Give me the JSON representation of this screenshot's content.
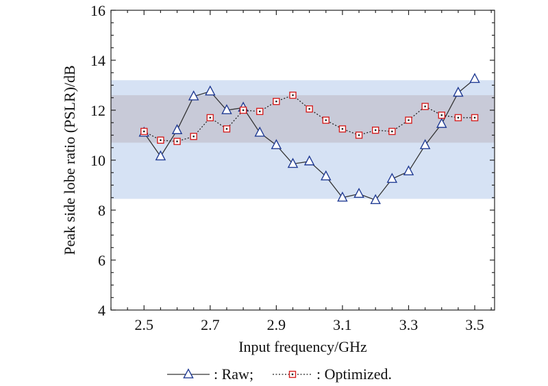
{
  "chart_data": {
    "type": "line",
    "xlabel": "Input frequency/GHz",
    "ylabel": "Peak side lobe ratio (PSLR)/dB",
    "xlim": [
      2.4,
      3.56
    ],
    "ylim": [
      4,
      16
    ],
    "xticks": [
      "2.5",
      "2.7",
      "2.9",
      "3.1",
      "3.3",
      "3.5"
    ],
    "yticks": [
      "4",
      "6",
      "8",
      "10",
      "12",
      "14",
      "16"
    ],
    "x": [
      2.5,
      2.55,
      2.6,
      2.65,
      2.7,
      2.75,
      2.8,
      2.85,
      2.9,
      2.95,
      3.0,
      3.05,
      3.1,
      3.15,
      3.2,
      3.25,
      3.3,
      3.35,
      3.4,
      3.45,
      3.5
    ],
    "series": [
      {
        "name": "Raw",
        "legend_text": ": Raw;",
        "marker": "triangle",
        "line_style": "solid",
        "color": "#1f3a93",
        "line_color": "#333333",
        "values": [
          11.1,
          10.15,
          11.2,
          12.55,
          12.75,
          12.0,
          12.1,
          11.1,
          10.6,
          9.85,
          9.95,
          9.35,
          8.5,
          8.65,
          8.4,
          9.25,
          9.55,
          10.6,
          11.45,
          12.7,
          13.25
        ]
      },
      {
        "name": "Optimized.",
        "legend_text": ": Optimized.",
        "marker": "square",
        "line_style": "dotted",
        "color": "#d42020",
        "line_color": "#222222",
        "values": [
          11.15,
          10.8,
          10.75,
          10.95,
          11.7,
          11.25,
          12.0,
          11.95,
          12.35,
          12.6,
          12.05,
          11.6,
          11.25,
          11.0,
          11.2,
          11.15,
          11.6,
          12.15,
          11.8,
          11.7,
          11.7
        ]
      }
    ],
    "bands": [
      {
        "y0": 8.45,
        "y1": 13.2,
        "color": "#d6e2f4"
      },
      {
        "y0": 10.7,
        "y1": 12.6,
        "color": "#c8cad8"
      }
    ],
    "grid": false,
    "legend_position": "bottom"
  }
}
